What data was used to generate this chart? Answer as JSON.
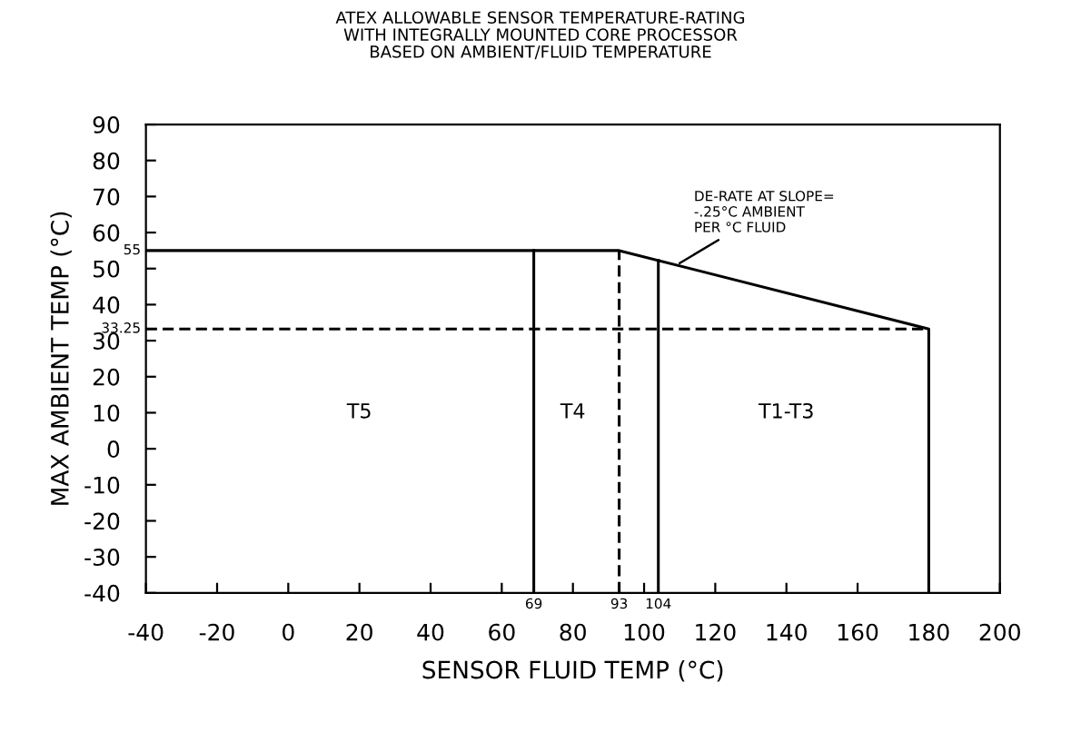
{
  "chart_data": {
    "type": "line",
    "title": "ATEX ALLOWABLE SENSOR TEMPERATURE-RATING\nWITH INTEGRALLY MOUNTED CORE PROCESSOR\nBASED ON AMBIENT/FLUID TEMPERATURE",
    "xlabel": "SENSOR FLUID TEMP (°C)",
    "ylabel": "MAX AMBIENT TEMP (°C)",
    "series": [
      {
        "color": "#000000",
        "line_style": "solid",
        "x": [
          -40,
          93,
          180,
          180
        ],
        "values": [
          55,
          55,
          33.25,
          -40
        ]
      },
      {
        "color": "#000000",
        "line_style": "solid",
        "x": [
          69,
          69
        ],
        "values": [
          -40,
          55
        ]
      },
      {
        "color": "#000000",
        "line_style": "dashed",
        "x": [
          93,
          93
        ],
        "values": [
          -40,
          55
        ]
      },
      {
        "color": "#000000",
        "line_style": "solid",
        "x": [
          104,
          104
        ],
        "values": [
          -40,
          52.25
        ]
      },
      {
        "color": "#000000",
        "line_style": "dashed",
        "x": [
          -40,
          180
        ],
        "values": [
          33.25,
          33.25
        ]
      }
    ],
    "xlim": [
      -40,
      200
    ],
    "ylim": [
      -40,
      90
    ],
    "xticks": [
      -40,
      -20,
      0,
      20,
      40,
      60,
      80,
      100,
      120,
      140,
      160,
      180,
      200
    ],
    "yticks": [
      -40,
      -30,
      -20,
      -10,
      0,
      10,
      20,
      30,
      40,
      50,
      60,
      70,
      80,
      90
    ],
    "annotations": [
      "T5",
      "T4",
      "T1-T3",
      {
        "text": "69",
        "x": 69,
        "y": -40
      },
      {
        "text": "93",
        "x": 93,
        "y": -40
      },
      {
        "text": "104",
        "x": 104,
        "y": -40
      },
      {
        "text": "55",
        "x": -40,
        "y": 55
      },
      {
        "text": "33.25",
        "x": -40,
        "y": 33.25
      },
      {
        "text": "DE-RATE AT SLOPE=\n-.25°C AMBIENT\nPER °C FLUID",
        "x": 110,
        "y": 51.5
      }
    ],
    "grid": false,
    "legend": false,
    "marker": "none"
  }
}
